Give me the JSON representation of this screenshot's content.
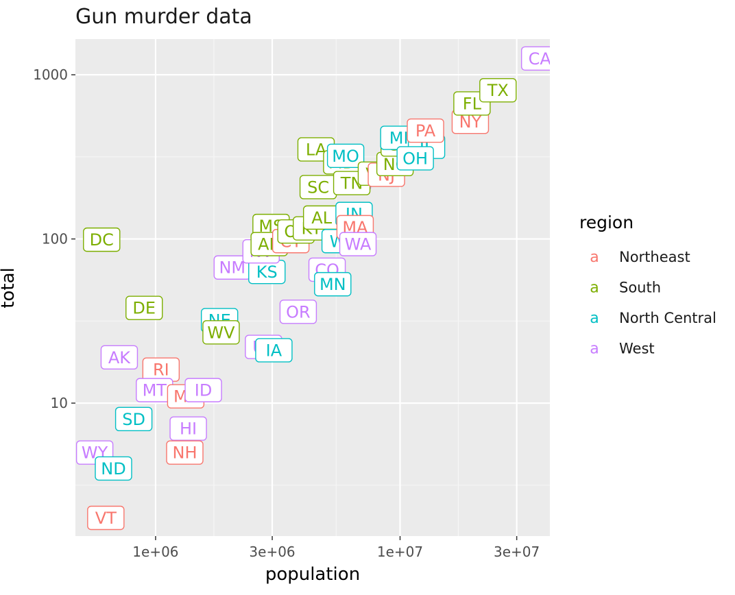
{
  "chart_data": {
    "type": "scatter",
    "title": "Gun murder data",
    "xlabel": "population",
    "ylabel": "total",
    "x_scale": "log10",
    "y_scale": "log10",
    "xlim": [
      470000,
      41000000
    ],
    "ylim": [
      1.55,
      1650
    ],
    "x_ticks": [
      {
        "value": 1000000,
        "label": "1e+06"
      },
      {
        "value": 3000000,
        "label": "3e+06"
      },
      {
        "value": 10000000,
        "label": "1e+07"
      },
      {
        "value": 30000000,
        "label": "3e+07"
      }
    ],
    "y_ticks": [
      {
        "value": 10,
        "label": "10"
      },
      {
        "value": 100,
        "label": "100"
      },
      {
        "value": 1000,
        "label": "1000"
      }
    ],
    "grid": true,
    "legend": {
      "title": "region",
      "position": "right",
      "key_glyph": "a",
      "entries": [
        {
          "name": "Northeast",
          "color": "#F8766D"
        },
        {
          "name": "South",
          "color": "#7CAE00"
        },
        {
          "name": "North Central",
          "color": "#00BFC4"
        },
        {
          "name": "West",
          "color": "#C77CFF"
        }
      ]
    },
    "points": [
      {
        "label": "DC",
        "region": "South",
        "x": 601723,
        "y": 99
      },
      {
        "label": "AK",
        "region": "West",
        "x": 710231,
        "y": 19
      },
      {
        "label": "DE",
        "region": "South",
        "x": 897934,
        "y": 38
      },
      {
        "label": "RI",
        "region": "Northeast",
        "x": 1052567,
        "y": 16
      },
      {
        "label": "MT",
        "region": "West",
        "x": 989415,
        "y": 12
      },
      {
        "label": "ME",
        "region": "Northeast",
        "x": 1328361,
        "y": 11
      },
      {
        "label": "ID",
        "region": "West",
        "x": 1567582,
        "y": 12
      },
      {
        "label": "SD",
        "region": "North Central",
        "x": 814180,
        "y": 8
      },
      {
        "label": "HI",
        "region": "West",
        "x": 1360301,
        "y": 7
      },
      {
        "label": "WY",
        "region": "West",
        "x": 563626,
        "y": 5
      },
      {
        "label": "ND",
        "region": "North Central",
        "x": 672591,
        "y": 4
      },
      {
        "label": "NH",
        "region": "Northeast",
        "x": 1316470,
        "y": 5
      },
      {
        "label": "VT",
        "region": "Northeast",
        "x": 625741,
        "y": 2
      },
      {
        "label": "NE",
        "region": "North Central",
        "x": 1826341,
        "y": 32
      },
      {
        "label": "WV",
        "region": "South",
        "x": 1852994,
        "y": 27
      },
      {
        "label": "UT",
        "region": "West",
        "x": 2763885,
        "y": 22
      },
      {
        "label": "IA",
        "region": "North Central",
        "x": 3046355,
        "y": 21
      },
      {
        "label": "NM",
        "region": "West",
        "x": 2059179,
        "y": 67
      },
      {
        "label": "KS",
        "region": "North Central",
        "x": 2853118,
        "y": 63
      },
      {
        "label": "NV",
        "region": "West",
        "x": 2700551,
        "y": 84
      },
      {
        "label": "MS",
        "region": "South",
        "x": 2967297,
        "y": 120
      },
      {
        "label": "AR",
        "region": "South",
        "x": 2915918,
        "y": 93
      },
      {
        "label": "CT",
        "region": "Northeast",
        "x": 3574097,
        "y": 97
      },
      {
        "label": "OK",
        "region": "South",
        "x": 3751351,
        "y": 111
      },
      {
        "label": "OR",
        "region": "West",
        "x": 3831074,
        "y": 36
      },
      {
        "label": "CO",
        "region": "West",
        "x": 5029196,
        "y": 65
      },
      {
        "label": "MN",
        "region": "North Central",
        "x": 5303925,
        "y": 53
      },
      {
        "label": "KY",
        "region": "South",
        "x": 4339367,
        "y": 116
      },
      {
        "label": "AL",
        "region": "South",
        "x": 4779736,
        "y": 135
      },
      {
        "label": "LA",
        "region": "South",
        "x": 4533372,
        "y": 351
      },
      {
        "label": "SC",
        "region": "South",
        "x": 4625364,
        "y": 207
      },
      {
        "label": "WI",
        "region": "North Central",
        "x": 5686986,
        "y": 97
      },
      {
        "label": "AZ",
        "region": "West",
        "x": 6392017,
        "y": 232
      },
      {
        "label": "MD",
        "region": "South",
        "x": 5773552,
        "y": 293
      },
      {
        "label": "MO",
        "region": "North Central",
        "x": 5988927,
        "y": 321
      },
      {
        "label": "IN",
        "region": "North Central",
        "x": 6483802,
        "y": 142
      },
      {
        "label": "MA",
        "region": "Northeast",
        "x": 6547629,
        "y": 118
      },
      {
        "label": "WA",
        "region": "West",
        "x": 6724540,
        "y": 93
      },
      {
        "label": "TN",
        "region": "South",
        "x": 6346105,
        "y": 219
      },
      {
        "label": "VA",
        "region": "South",
        "x": 8001024,
        "y": 250
      },
      {
        "label": "NJ",
        "region": "Northeast",
        "x": 8791894,
        "y": 246
      },
      {
        "label": "NC",
        "region": "South",
        "x": 9535483,
        "y": 286
      },
      {
        "label": "GA",
        "region": "South",
        "x": 9920000,
        "y": 376
      },
      {
        "label": "MI",
        "region": "North Central",
        "x": 9883640,
        "y": 413
      },
      {
        "label": "IL",
        "region": "North Central",
        "x": 12830632,
        "y": 364
      },
      {
        "label": "OH",
        "region": "North Central",
        "x": 11536504,
        "y": 310
      },
      {
        "label": "PA",
        "region": "Northeast",
        "x": 12702379,
        "y": 457
      },
      {
        "label": "NY",
        "region": "Northeast",
        "x": 19378102,
        "y": 517
      },
      {
        "label": "FL",
        "region": "South",
        "x": 19687653,
        "y": 669
      },
      {
        "label": "TX",
        "region": "South",
        "x": 25145561,
        "y": 805
      },
      {
        "label": "CA",
        "region": "West",
        "x": 37253956,
        "y": 1257
      }
    ]
  }
}
